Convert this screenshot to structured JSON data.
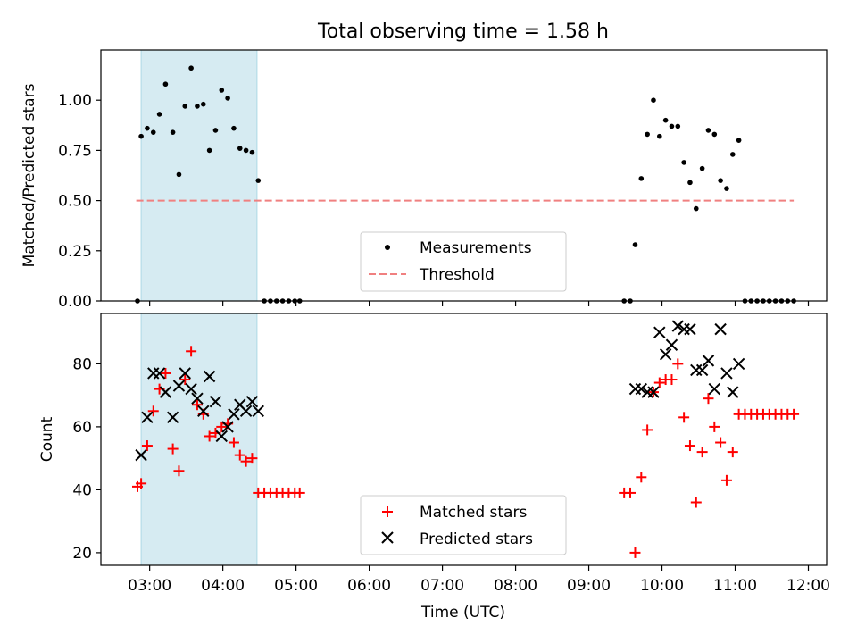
{
  "chart_data": [
    {
      "type": "scatter",
      "title": "Total observing time = 1.58 h",
      "xlabel": "",
      "ylabel": "Matched/Predicted stars",
      "xlim": [
        "02:20",
        "12:15"
      ],
      "ylim": [
        0,
        1.25
      ],
      "yticks": [
        0,
        0.25,
        0.5,
        0.75,
        1.0
      ],
      "ytick_labels": [
        "0.00",
        "0.25",
        "0.50",
        "0.75",
        "1.00"
      ],
      "shaded_interval": [
        "02:53",
        "04:28"
      ],
      "threshold": {
        "name": "Threshold",
        "value": 0.5,
        "x_range": [
          "02:49",
          "11:48"
        ],
        "color": "#f08080"
      },
      "legend_position": "lower center",
      "series": [
        {
          "name": "Measurements",
          "color": "#000000",
          "points": [
            [
              "02:50",
              0.0
            ],
            [
              "02:53",
              0.82
            ],
            [
              "02:58",
              0.86
            ],
            [
              "03:03",
              0.84
            ],
            [
              "03:08",
              0.93
            ],
            [
              "03:13",
              1.08
            ],
            [
              "03:19",
              0.84
            ],
            [
              "03:24",
              0.63
            ],
            [
              "03:29",
              0.97
            ],
            [
              "03:34",
              1.16
            ],
            [
              "03:39",
              0.97
            ],
            [
              "03:44",
              0.98
            ],
            [
              "03:49",
              0.75
            ],
            [
              "03:54",
              0.85
            ],
            [
              "03:59",
              1.05
            ],
            [
              "04:04",
              1.01
            ],
            [
              "04:09",
              0.86
            ],
            [
              "04:14",
              0.76
            ],
            [
              "04:19",
              0.75
            ],
            [
              "04:24",
              0.74
            ],
            [
              "04:29",
              0.6
            ],
            [
              "04:34",
              0.0
            ],
            [
              "04:39",
              0.0
            ],
            [
              "04:44",
              0.0
            ],
            [
              "04:49",
              0.0
            ],
            [
              "04:54",
              0.0
            ],
            [
              "04:59",
              0.0
            ],
            [
              "05:03",
              0.0
            ],
            [
              "09:29",
              0.0
            ],
            [
              "09:34",
              0.0
            ],
            [
              "09:38",
              0.28
            ],
            [
              "09:43",
              0.61
            ],
            [
              "09:48",
              0.83
            ],
            [
              "09:53",
              1.0
            ],
            [
              "09:58",
              0.82
            ],
            [
              "10:03",
              0.9
            ],
            [
              "10:08",
              0.87
            ],
            [
              "10:13",
              0.87
            ],
            [
              "10:18",
              0.69
            ],
            [
              "10:23",
              0.59
            ],
            [
              "10:28",
              0.46
            ],
            [
              "10:33",
              0.66
            ],
            [
              "10:38",
              0.85
            ],
            [
              "10:43",
              0.83
            ],
            [
              "10:48",
              0.6
            ],
            [
              "10:53",
              0.56
            ],
            [
              "10:58",
              0.73
            ],
            [
              "11:03",
              0.8
            ],
            [
              "11:08",
              0.0
            ],
            [
              "11:13",
              0.0
            ],
            [
              "11:18",
              0.0
            ],
            [
              "11:23",
              0.0
            ],
            [
              "11:28",
              0.0
            ],
            [
              "11:33",
              0.0
            ],
            [
              "11:38",
              0.0
            ],
            [
              "11:43",
              0.0
            ],
            [
              "11:48",
              0.0
            ]
          ]
        }
      ]
    },
    {
      "type": "scatter",
      "title": "",
      "xlabel": "Time (UTC)",
      "ylabel": "Count",
      "xlim": [
        "02:20",
        "12:15"
      ],
      "ylim": [
        16,
        96
      ],
      "yticks": [
        20,
        40,
        60,
        80
      ],
      "ytick_labels": [
        "20",
        "40",
        "60",
        "80"
      ],
      "xticks": [
        "03:00",
        "04:00",
        "05:00",
        "06:00",
        "07:00",
        "08:00",
        "09:00",
        "10:00",
        "11:00",
        "12:00"
      ],
      "shaded_interval": [
        "02:53",
        "04:28"
      ],
      "legend_position": "lower center",
      "series": [
        {
          "name": "Matched stars",
          "marker": "+",
          "color": "#ff0000",
          "points": [
            [
              "02:50",
              41
            ],
            [
              "02:53",
              42
            ],
            [
              "02:58",
              54
            ],
            [
              "03:03",
              65
            ],
            [
              "03:08",
              72
            ],
            [
              "03:13",
              77
            ],
            [
              "03:19",
              53
            ],
            [
              "03:24",
              46
            ],
            [
              "03:29",
              75
            ],
            [
              "03:34",
              84
            ],
            [
              "03:39",
              67
            ],
            [
              "03:44",
              64
            ],
            [
              "03:49",
              57
            ],
            [
              "03:54",
              58
            ],
            [
              "03:59",
              60
            ],
            [
              "04:04",
              61
            ],
            [
              "04:09",
              55
            ],
            [
              "04:14",
              51
            ],
            [
              "04:19",
              49
            ],
            [
              "04:24",
              50
            ],
            [
              "04:29",
              39
            ],
            [
              "04:34",
              39
            ],
            [
              "04:39",
              39
            ],
            [
              "04:44",
              39
            ],
            [
              "04:49",
              39
            ],
            [
              "04:54",
              39
            ],
            [
              "04:59",
              39
            ],
            [
              "05:03",
              39
            ],
            [
              "09:29",
              39
            ],
            [
              "09:34",
              39
            ],
            [
              "09:38",
              20
            ],
            [
              "09:43",
              44
            ],
            [
              "09:48",
              59
            ],
            [
              "09:53",
              71
            ],
            [
              "09:58",
              74
            ],
            [
              "10:03",
              75
            ],
            [
              "10:08",
              75
            ],
            [
              "10:13",
              80
            ],
            [
              "10:18",
              63
            ],
            [
              "10:23",
              54
            ],
            [
              "10:28",
              36
            ],
            [
              "10:33",
              52
            ],
            [
              "10:38",
              69
            ],
            [
              "10:43",
              60
            ],
            [
              "10:48",
              55
            ],
            [
              "10:53",
              43
            ],
            [
              "10:58",
              52
            ],
            [
              "11:03",
              64
            ],
            [
              "11:08",
              64
            ],
            [
              "11:13",
              64
            ],
            [
              "11:18",
              64
            ],
            [
              "11:23",
              64
            ],
            [
              "11:28",
              64
            ],
            [
              "11:33",
              64
            ],
            [
              "11:38",
              64
            ],
            [
              "11:43",
              64
            ],
            [
              "11:48",
              64
            ]
          ]
        },
        {
          "name": "Predicted stars",
          "marker": "x",
          "color": "#000000",
          "points": [
            [
              "02:53",
              51
            ],
            [
              "02:58",
              63
            ],
            [
              "03:03",
              77
            ],
            [
              "03:08",
              77
            ],
            [
              "03:13",
              71
            ],
            [
              "03:19",
              63
            ],
            [
              "03:24",
              73
            ],
            [
              "03:29",
              77
            ],
            [
              "03:34",
              72
            ],
            [
              "03:39",
              69
            ],
            [
              "03:44",
              65
            ],
            [
              "03:49",
              76
            ],
            [
              "03:54",
              68
            ],
            [
              "03:59",
              57
            ],
            [
              "04:04",
              60
            ],
            [
              "04:09",
              64
            ],
            [
              "04:14",
              67
            ],
            [
              "04:19",
              65
            ],
            [
              "04:24",
              68
            ],
            [
              "04:29",
              65
            ],
            [
              "09:38",
              72
            ],
            [
              "09:43",
              72
            ],
            [
              "09:48",
              71
            ],
            [
              "09:53",
              71
            ],
            [
              "09:58",
              90
            ],
            [
              "10:03",
              83
            ],
            [
              "10:08",
              86
            ],
            [
              "10:13",
              92
            ],
            [
              "10:18",
              91
            ],
            [
              "10:23",
              91
            ],
            [
              "10:28",
              78
            ],
            [
              "10:33",
              78
            ],
            [
              "10:38",
              81
            ],
            [
              "10:43",
              72
            ],
            [
              "10:48",
              91
            ],
            [
              "10:53",
              77
            ],
            [
              "10:58",
              71
            ],
            [
              "11:03",
              80
            ]
          ]
        }
      ]
    }
  ],
  "colors": {
    "shade": "#add8e6",
    "axes": "#000000"
  }
}
